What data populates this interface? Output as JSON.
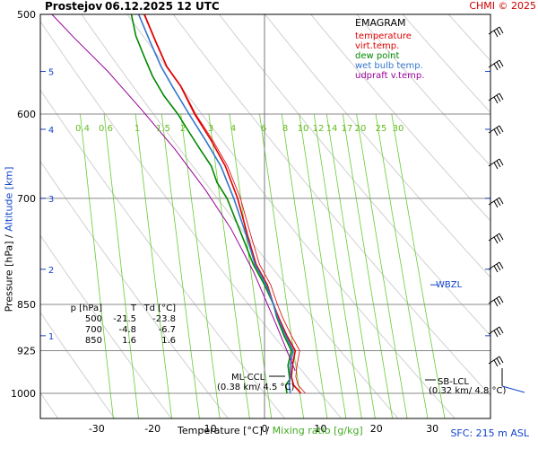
{
  "header": {
    "station": "Prostejov",
    "datetime": "06.12.2025 12 UTC",
    "credit": "CHMI © 2025"
  },
  "footer": {
    "sfc": "SFC: 215 m ASL"
  },
  "axes": {
    "x_title_temp": "Temperature [°C]",
    "x_title_sep": "/",
    "x_title_mix": "Mixing ratio [g/kg]",
    "y_title_p": "Pressure [hPa]",
    "y_title_sep": "/",
    "y_title_alt": "Altitude [km]"
  },
  "legend": {
    "title": "EMAGRAM",
    "items": [
      {
        "label": "temperature",
        "color": "#e00000"
      },
      {
        "label": "virt.temp.",
        "color": "#e00000"
      },
      {
        "label": "dew point",
        "color": "#008800"
      },
      {
        "label": "wet bulb temp.",
        "color": "#3377cc"
      },
      {
        "label": "udpraft v.temp.",
        "color": "#990099"
      }
    ]
  },
  "table": {
    "headers": [
      "p [hPa]",
      "T",
      "Td [°C]"
    ],
    "rows": [
      [
        "500",
        "-21.5",
        "-23.8"
      ],
      [
        "700",
        "-4.8",
        "-6.7"
      ],
      [
        "850",
        "1.6",
        "1.6"
      ]
    ]
  },
  "annotations": {
    "wbzl": "WBZL",
    "ml_ccl_1": "ML-CCL",
    "ml_ccl_2": "(0.38 km/ 4.5 °C)",
    "sb_lcl_1": "SB-LCL",
    "sb_lcl_2": "(0.32 km/ 4.8 °C)"
  },
  "chart_data": {
    "type": "line",
    "y_scale": "log",
    "xlim": [
      -38,
      30
    ],
    "ylim": [
      1000,
      500
    ],
    "x_ticks": [
      -30,
      -20,
      -10,
      0,
      10,
      20,
      30
    ],
    "y_ticks": [
      500,
      600,
      700,
      850,
      925,
      1000
    ],
    "km_ticks": [
      {
        "label": "5",
        "p": 555
      },
      {
        "label": "4",
        "p": 617
      },
      {
        "label": "3",
        "p": 700
      },
      {
        "label": "2",
        "p": 797
      },
      {
        "label": "1",
        "p": 900
      }
    ],
    "skew_per_decade_lnP": 0,
    "mixing_ratio_labels": [
      "0.4",
      "0.6",
      "1",
      "1.5",
      "2",
      "3",
      "4",
      "6",
      "8",
      "10",
      "12",
      "14",
      "17",
      "20",
      "25",
      "30"
    ],
    "mixing_ratio_values": [
      0.4,
      0.6,
      1,
      1.5,
      2,
      3,
      4,
      6,
      8,
      10,
      12,
      14,
      17,
      20,
      25,
      30
    ],
    "series": [
      {
        "name": "temperature",
        "color": "#e00000",
        "points": [
          [
            6.5,
            1000
          ],
          [
            5.2,
            985
          ],
          [
            4.8,
            970
          ],
          [
            5.0,
            950
          ],
          [
            5.5,
            925
          ],
          [
            4.0,
            900
          ],
          [
            2.5,
            870
          ],
          [
            1.6,
            850
          ],
          [
            0.5,
            820
          ],
          [
            -1.5,
            790
          ],
          [
            -3.0,
            750
          ],
          [
            -4.8,
            700
          ],
          [
            -7.0,
            660
          ],
          [
            -9.5,
            630
          ],
          [
            -12.5,
            600
          ],
          [
            -15.0,
            570
          ],
          [
            -17.5,
            550
          ],
          [
            -19.5,
            525
          ],
          [
            -21.5,
            500
          ]
        ]
      },
      {
        "name": "virt.temp.",
        "color": "#e00000",
        "points": [
          [
            7.3,
            1000
          ],
          [
            6.0,
            985
          ],
          [
            5.6,
            970
          ],
          [
            5.8,
            950
          ],
          [
            6.3,
            925
          ],
          [
            4.8,
            900
          ],
          [
            3.2,
            870
          ],
          [
            2.3,
            850
          ],
          [
            1.1,
            820
          ],
          [
            -0.9,
            790
          ],
          [
            -2.4,
            750
          ],
          [
            -4.3,
            700
          ],
          [
            -6.6,
            660
          ],
          [
            -9.2,
            630
          ],
          [
            -12.3,
            600
          ],
          [
            -14.9,
            570
          ],
          [
            -17.4,
            550
          ],
          [
            -19.4,
            525
          ],
          [
            -21.4,
            500
          ]
        ]
      },
      {
        "name": "dew point",
        "color": "#008800",
        "points": [
          [
            4.0,
            1000
          ],
          [
            3.8,
            985
          ],
          [
            4.5,
            975
          ],
          [
            4.2,
            950
          ],
          [
            4.8,
            925
          ],
          [
            3.5,
            900
          ],
          [
            2.2,
            870
          ],
          [
            1.6,
            850
          ],
          [
            0.0,
            820
          ],
          [
            -2.0,
            790
          ],
          [
            -3.5,
            760
          ],
          [
            -6.7,
            700
          ],
          [
            -8.5,
            680
          ],
          [
            -9.5,
            660
          ],
          [
            -11.5,
            640
          ],
          [
            -13.5,
            620
          ],
          [
            -15.5,
            600
          ],
          [
            -18.0,
            580
          ],
          [
            -20.0,
            560
          ],
          [
            -21.5,
            540
          ],
          [
            -23.0,
            520
          ],
          [
            -23.8,
            500
          ]
        ]
      },
      {
        "name": "wet bulb temp.",
        "color": "#3377cc",
        "points": [
          [
            4.6,
            1000
          ],
          [
            4.4,
            985
          ],
          [
            4.6,
            970
          ],
          [
            4.6,
            950
          ],
          [
            5.1,
            925
          ],
          [
            3.8,
            900
          ],
          [
            2.3,
            870
          ],
          [
            1.6,
            850
          ],
          [
            0.3,
            820
          ],
          [
            -1.7,
            790
          ],
          [
            -3.2,
            750
          ],
          [
            -5.5,
            700
          ],
          [
            -7.8,
            660
          ],
          [
            -10.5,
            630
          ],
          [
            -13.5,
            600
          ],
          [
            -16.5,
            570
          ],
          [
            -18.5,
            550
          ],
          [
            -20.5,
            525
          ],
          [
            -22.5,
            500
          ]
        ]
      },
      {
        "name": "udpraft v.temp.",
        "color": "#990099",
        "points": [
          [
            5.5,
            960
          ],
          [
            2.0,
            880
          ],
          [
            -2.0,
            800
          ],
          [
            -6.0,
            740
          ],
          [
            -10.5,
            690
          ],
          [
            -16.0,
            640
          ],
          [
            -22.0,
            595
          ],
          [
            -28.0,
            555
          ],
          [
            -34.0,
            522
          ],
          [
            -38.0,
            500
          ]
        ]
      }
    ]
  }
}
